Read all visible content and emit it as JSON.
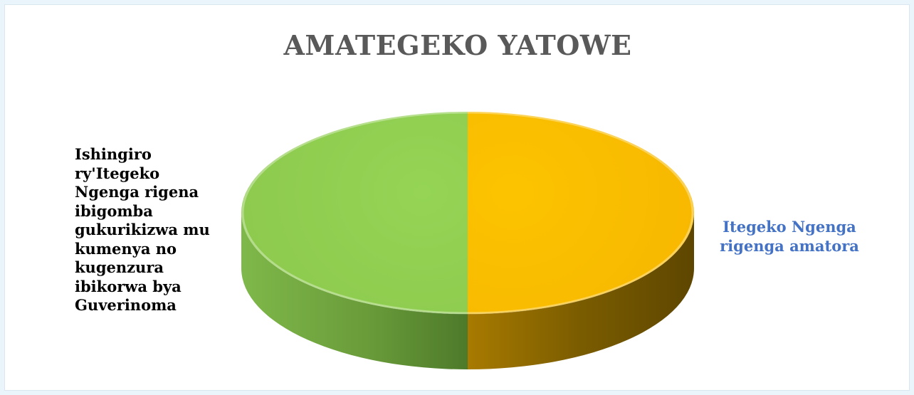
{
  "chart_data": {
    "type": "pie",
    "title": "AMATEGEKO YATOWE",
    "slices": [
      {
        "label": "Itegeko Ngenga\nrigenga amatora",
        "value": 50,
        "color": "#fbbf00",
        "side_color": "#8c6a00",
        "label_color": "#4472c4"
      },
      {
        "label": "Ishingiro\nry'Itegeko\nNgenga rigena\nibigomba\ngukurikizwa mu\nkumenya no\nkugenzura\nibikorwa bya\nGuverinoma",
        "value": 50,
        "color": "#92d050",
        "side_color": "#5a8a33",
        "label_color": "#000000"
      }
    ],
    "style": "3d",
    "legend": "none",
    "data_labels": "outside"
  }
}
